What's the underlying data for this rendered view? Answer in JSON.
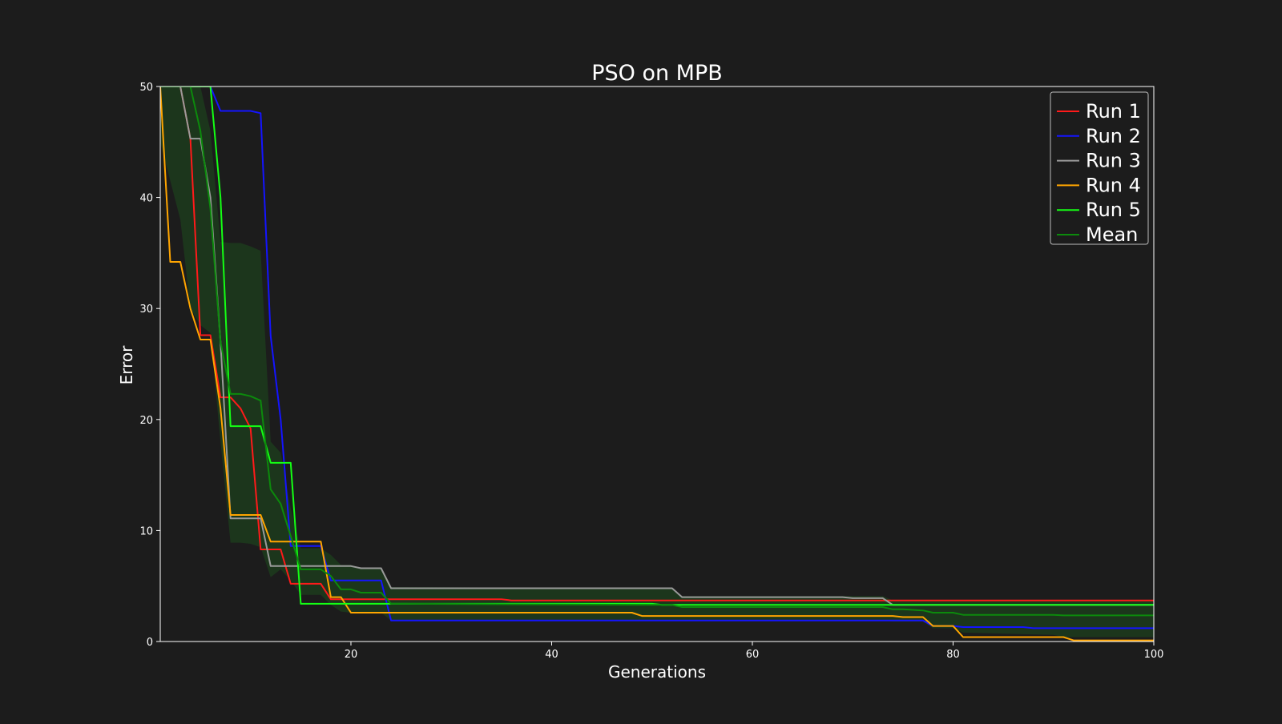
{
  "colors": {
    "background": "#1c1c1c",
    "axes": "#ffffff",
    "text": "#ffffff",
    "band": "#1d3a1d",
    "legend_bg": "#1c1c1c",
    "legend_border": "#bbbbbb"
  },
  "chart_data": {
    "type": "line",
    "title": "PSO on MPB",
    "xlabel": "Generations",
    "ylabel": "Error",
    "xlim": [
      1,
      100
    ],
    "ylim": [
      0,
      50
    ],
    "x_ticks": [
      20,
      40,
      60,
      80,
      100
    ],
    "y_ticks": [
      0,
      10,
      20,
      30,
      40,
      50
    ],
    "grid": false,
    "legend_position": "top-right",
    "series": [
      {
        "name": "Run 1",
        "color": "#ff1a1a",
        "points": [
          [
            1,
            50
          ],
          [
            2,
            50
          ],
          [
            3,
            50
          ],
          [
            4,
            45.3
          ],
          [
            5,
            27.6
          ],
          [
            6,
            27.6
          ],
          [
            7,
            22
          ],
          [
            8,
            22
          ],
          [
            9,
            21
          ],
          [
            10,
            19.2
          ],
          [
            11,
            8.3
          ],
          [
            12,
            8.3
          ],
          [
            13,
            8.3
          ],
          [
            14,
            5.2
          ],
          [
            15,
            5.2
          ],
          [
            16,
            5.2
          ],
          [
            17,
            5.2
          ],
          [
            18,
            3.8
          ],
          [
            19,
            3.8
          ],
          [
            20,
            3.8
          ],
          [
            35,
            3.8
          ],
          [
            36,
            3.7
          ],
          [
            100,
            3.7
          ]
        ]
      },
      {
        "name": "Run 2",
        "color": "#1414ff",
        "points": [
          [
            1,
            50
          ],
          [
            6,
            50
          ],
          [
            7,
            47.8
          ],
          [
            8,
            47.8
          ],
          [
            9,
            47.8
          ],
          [
            10,
            47.8
          ],
          [
            11,
            47.6
          ],
          [
            12,
            27.5
          ],
          [
            13,
            20
          ],
          [
            14,
            8.6
          ],
          [
            15,
            8.6
          ],
          [
            16,
            8.6
          ],
          [
            17,
            8.6
          ],
          [
            18,
            5.5
          ],
          [
            19,
            5.5
          ],
          [
            20,
            5.5
          ],
          [
            23,
            5.5
          ],
          [
            24,
            1.9
          ],
          [
            25,
            1.9
          ],
          [
            75,
            1.9
          ],
          [
            77,
            1.9
          ],
          [
            78,
            1.4
          ],
          [
            80,
            1.4
          ],
          [
            81,
            1.3
          ],
          [
            87,
            1.3
          ],
          [
            88,
            1.2
          ],
          [
            100,
            1.2
          ]
        ]
      },
      {
        "name": "Run 3",
        "color": "#9a9a9a",
        "points": [
          [
            1,
            50
          ],
          [
            2,
            50
          ],
          [
            3,
            50
          ],
          [
            4,
            45.3
          ],
          [
            5,
            45.3
          ],
          [
            6,
            40
          ],
          [
            7,
            27
          ],
          [
            8,
            11.1
          ],
          [
            9,
            11.1
          ],
          [
            10,
            11.1
          ],
          [
            11,
            11.1
          ],
          [
            12,
            6.8
          ],
          [
            13,
            6.8
          ],
          [
            20,
            6.8
          ],
          [
            21,
            6.6
          ],
          [
            23,
            6.6
          ],
          [
            24,
            4.8
          ],
          [
            25,
            4.8
          ],
          [
            52,
            4.8
          ],
          [
            53,
            4
          ],
          [
            69,
            4
          ],
          [
            70,
            3.9
          ],
          [
            73,
            3.9
          ],
          [
            74,
            3.3
          ],
          [
            100,
            3.3
          ]
        ]
      },
      {
        "name": "Run 4",
        "color": "#ffa500",
        "points": [
          [
            1,
            50
          ],
          [
            2,
            34.2
          ],
          [
            3,
            34.2
          ],
          [
            4,
            30
          ],
          [
            5,
            27.2
          ],
          [
            6,
            27.2
          ],
          [
            7,
            21
          ],
          [
            8,
            11.4
          ],
          [
            9,
            11.4
          ],
          [
            10,
            11.4
          ],
          [
            11,
            11.4
          ],
          [
            12,
            9
          ],
          [
            13,
            9
          ],
          [
            14,
            9
          ],
          [
            15,
            9
          ],
          [
            16,
            9
          ],
          [
            17,
            9
          ],
          [
            18,
            4
          ],
          [
            19,
            4
          ],
          [
            20,
            2.6
          ],
          [
            21,
            2.6
          ],
          [
            48,
            2.6
          ],
          [
            49,
            2.3
          ],
          [
            74,
            2.3
          ],
          [
            75,
            2.2
          ],
          [
            77,
            2.2
          ],
          [
            78,
            1.4
          ],
          [
            80,
            1.4
          ],
          [
            81,
            0.4
          ],
          [
            91,
            0.4
          ],
          [
            92,
            0.1
          ],
          [
            100,
            0.1
          ]
        ]
      },
      {
        "name": "Run 5",
        "color": "#14ff14",
        "points": [
          [
            1,
            50
          ],
          [
            6,
            50
          ],
          [
            7,
            40
          ],
          [
            8,
            19.4
          ],
          [
            9,
            19.4
          ],
          [
            10,
            19.4
          ],
          [
            11,
            19.4
          ],
          [
            12,
            16.1
          ],
          [
            13,
            16.1
          ],
          [
            14,
            16.1
          ],
          [
            15,
            3.4
          ],
          [
            16,
            3.4
          ],
          [
            17,
            3.4
          ],
          [
            50,
            3.4
          ],
          [
            51,
            3.3
          ],
          [
            100,
            3.3
          ]
        ]
      },
      {
        "name": "Mean",
        "color": "#0c8a0c",
        "points": [
          [
            1,
            50
          ],
          [
            2,
            50
          ],
          [
            3,
            50
          ],
          [
            4,
            50
          ],
          [
            5,
            46
          ],
          [
            6,
            39
          ],
          [
            7,
            27
          ],
          [
            8,
            22.3
          ],
          [
            9,
            22.3
          ],
          [
            10,
            22.1
          ],
          [
            11,
            21.7
          ],
          [
            12,
            13.7
          ],
          [
            13,
            12.4
          ],
          [
            14,
            9.5
          ],
          [
            15,
            6.5
          ],
          [
            16,
            6.5
          ],
          [
            17,
            6.5
          ],
          [
            18,
            5.9
          ],
          [
            19,
            4.7
          ],
          [
            20,
            4.7
          ],
          [
            21,
            4.4
          ],
          [
            23,
            4.4
          ],
          [
            24,
            3.4
          ],
          [
            25,
            3.4
          ],
          [
            52,
            3.3
          ],
          [
            53,
            3.1
          ],
          [
            73,
            3.1
          ],
          [
            74,
            2.9
          ],
          [
            75,
            2.9
          ],
          [
            77,
            2.8
          ],
          [
            78,
            2.6
          ],
          [
            80,
            2.6
          ],
          [
            81,
            2.4
          ],
          [
            90,
            2.4
          ],
          [
            91,
            2.35
          ],
          [
            100,
            2.35
          ]
        ]
      }
    ],
    "band": {
      "name": "Mean ± std",
      "upper": [
        [
          1,
          50
        ],
        [
          4,
          50
        ],
        [
          5,
          50
        ],
        [
          6,
          46
        ],
        [
          7,
          36
        ],
        [
          8,
          35.9
        ],
        [
          9,
          35.9
        ],
        [
          10,
          35.6
        ],
        [
          11,
          35.2
        ],
        [
          12,
          18
        ],
        [
          13,
          17
        ],
        [
          14,
          12
        ],
        [
          15,
          8.4
        ],
        [
          16,
          8.4
        ],
        [
          17,
          8.4
        ],
        [
          18,
          7.8
        ],
        [
          19,
          6.9
        ],
        [
          20,
          6.9
        ],
        [
          21,
          6.6
        ],
        [
          23,
          6.6
        ],
        [
          24,
          4.9
        ],
        [
          25,
          4.9
        ],
        [
          52,
          4.8
        ],
        [
          53,
          4.1
        ],
        [
          73,
          4.1
        ],
        [
          74,
          3.7
        ],
        [
          75,
          3.7
        ],
        [
          100,
          3.7
        ]
      ],
      "lower": [
        [
          1,
          45
        ],
        [
          3,
          38
        ],
        [
          4,
          30
        ],
        [
          5,
          28.5
        ],
        [
          6,
          27.8
        ],
        [
          7,
          18
        ],
        [
          8,
          8.9
        ],
        [
          9,
          8.9
        ],
        [
          10,
          8.8
        ],
        [
          11,
          8.5
        ],
        [
          12,
          5.8
        ],
        [
          13,
          6.5
        ],
        [
          14,
          5.5
        ],
        [
          15,
          4.2
        ],
        [
          16,
          4.2
        ],
        [
          17,
          4.2
        ],
        [
          18,
          3.3
        ],
        [
          19,
          2.7
        ],
        [
          20,
          2.6
        ],
        [
          23,
          2.6
        ],
        [
          24,
          1.9
        ],
        [
          25,
          1.9
        ],
        [
          73,
          1.9
        ],
        [
          74,
          1.8
        ],
        [
          77,
          1.8
        ],
        [
          78,
          1.2
        ],
        [
          80,
          1.2
        ],
        [
          81,
          0.8
        ],
        [
          90,
          0.6
        ],
        [
          91,
          0.4
        ],
        [
          100,
          0.4
        ]
      ]
    }
  }
}
